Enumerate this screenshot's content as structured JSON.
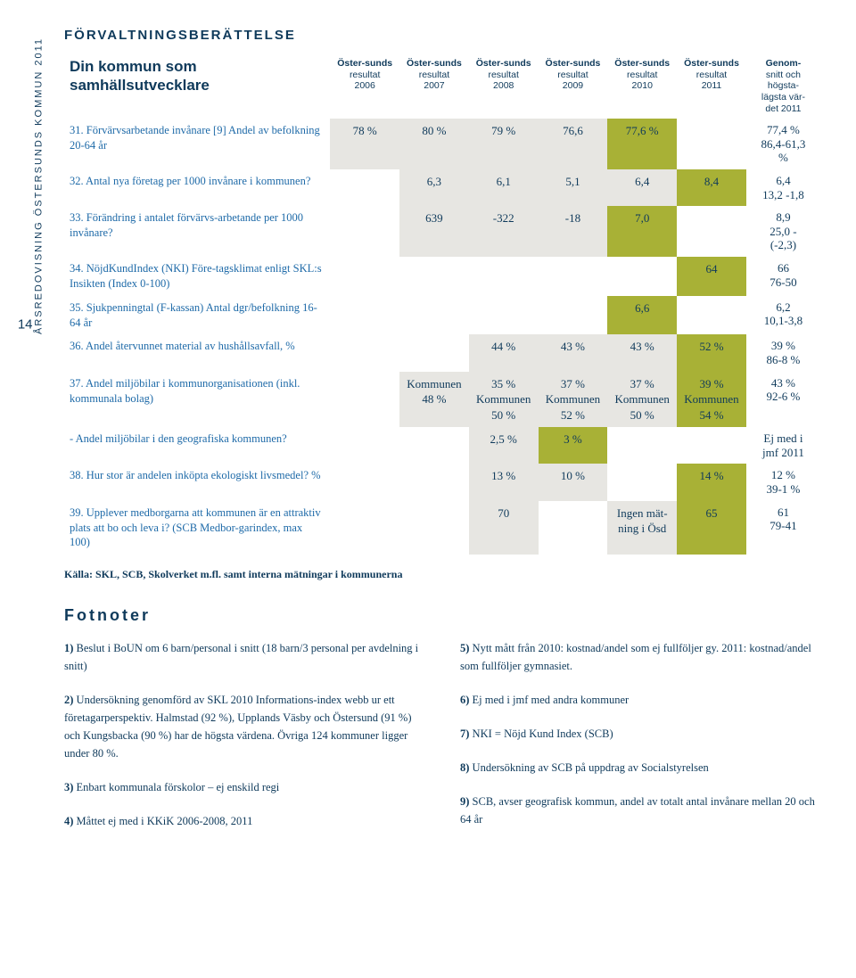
{
  "header_smallcaps": "FÖRVALTNINGSBERÄTTELSE",
  "spine_text": "ÅRSREDOVISNING ÖSTERSUNDS KOMMUN 2011",
  "page_number": "14",
  "table": {
    "title_line1": "Din kommun som",
    "title_line2": "samhällsutvecklare",
    "col_top": "Öster-sunds",
    "col_mid": "resultat",
    "years": [
      "2006",
      "2007",
      "2008",
      "2009",
      "2010",
      "2011"
    ],
    "genom_l1": "Genom-",
    "genom_l2": "snitt och",
    "genom_l3": "högsta-",
    "genom_l4": "lägsta vär-",
    "genom_l5": "det 2011",
    "rows": [
      {
        "label": "31. Förvärvsarbetande invånare [9] Andel av befolkning 20-64 år",
        "cells": [
          "78 %",
          "80 %",
          "79 %",
          "76,6",
          "77,6 %",
          ""
        ],
        "fill": [
          "grey",
          "grey",
          "grey",
          "grey",
          "olv",
          ""
        ],
        "g": [
          "77,4 %",
          "86,4-61,3",
          "%"
        ]
      },
      {
        "label": "32. Antal nya företag per 1000 invånare i kommunen?",
        "cells": [
          "",
          "6,3",
          "6,1",
          "5,1",
          "6,4",
          "8,4"
        ],
        "fill": [
          "",
          "grey",
          "grey",
          "grey",
          "grey",
          "olv"
        ],
        "g": [
          "6,4",
          "13,2 -1,8"
        ]
      },
      {
        "label": "33. Förändring i antalet förvärvs-arbetande per 1000 invånare?",
        "cells": [
          "",
          "639",
          "-322",
          "-18",
          "7,0",
          ""
        ],
        "fill": [
          "",
          "grey",
          "grey",
          "grey",
          "olv",
          ""
        ],
        "g": [
          "8,9",
          "25,0 -",
          "(-2,3)"
        ]
      },
      {
        "label": "34. NöjdKundIndex (NKI) Före-tagsklimat enligt SKL:s Insikten (Index 0-100)",
        "cells": [
          "",
          "",
          "",
          "",
          "",
          "64"
        ],
        "fill": [
          "",
          "",
          "",
          "",
          "",
          "olv"
        ],
        "g": [
          "66",
          "76-50"
        ]
      },
      {
        "label": "35. Sjukpenningtal (F-kassan) Antal dgr/befolkning 16-64 år",
        "cells": [
          "",
          "",
          "",
          "",
          "6,6",
          ""
        ],
        "fill": [
          "",
          "",
          "",
          "",
          "olv",
          ""
        ],
        "g": [
          "6,2",
          "10,1-3,8"
        ]
      },
      {
        "label": "36. Andel återvunnet material av hushållsavfall, %",
        "cells": [
          "",
          "",
          "44 %",
          "43 %",
          "43 %",
          "52 %"
        ],
        "fill": [
          "",
          "",
          "grey",
          "grey",
          "grey",
          "olv"
        ],
        "g": [
          "39 %",
          "86-8 %"
        ]
      },
      {
        "label": "37. Andel miljöbilar  i kommunorganisationen (inkl. kommunala bolag)",
        "cells": [
          "",
          "Kommunen 48 %",
          "35 %\nKommunen 50 %",
          "37 % Kommunen 52 %",
          "37 % Kommunen 50 %",
          "39 % Kommunen 54 %"
        ],
        "fill": [
          "",
          "grey",
          "grey",
          "grey",
          "grey",
          "olv"
        ],
        "g": [
          "43 %",
          "92-6 %"
        ]
      },
      {
        "label": "- Andel miljöbilar i den geografiska kommunen?",
        "cells": [
          "",
          "",
          "2,5 %",
          "3 %",
          "",
          ""
        ],
        "fill": [
          "",
          "",
          "grey",
          "olv",
          "",
          ""
        ],
        "g": [
          "Ej med i",
          "jmf 2011"
        ]
      },
      {
        "label": "38. Hur stor är andelen inköpta ekologiskt livsmedel? %",
        "cells": [
          "",
          "",
          "13 %",
          "10 %",
          "",
          "14 %"
        ],
        "fill": [
          "",
          "",
          "grey",
          "grey",
          "",
          "olv"
        ],
        "g": [
          "12 %",
          "39-1 %"
        ]
      },
      {
        "label": "39. Upplever medborgarna att kommunen är en attraktiv plats att bo och leva i? (SCB Medbor-garindex, max 100)",
        "cells": [
          "",
          "",
          "70",
          "",
          "Ingen mät-ning i Ösd",
          "65"
        ],
        "fill": [
          "",
          "",
          "grey",
          "",
          "grey",
          "olv"
        ],
        "g": [
          "61",
          "79-41"
        ]
      }
    ]
  },
  "source": "Källa: SKL, SCB, Skolverket m.fl. samt interna mätningar i kommunerna",
  "fotnoter_heading": "Fotnoter",
  "footnotes_left": [
    "1) Beslut i BoUN om 6 barn/personal i snitt (18 barn/3 personal per avdelning i snitt)",
    "2) Undersökning genomförd av SKL 2010 Informations-index webb ur ett företagarperspektiv. Halmstad (92 %), Upplands Väsby och Östersund (91 %) och Kungsbacka (90 %)  har de högsta värdena. Övriga 124 kommuner ligger under 80 %.",
    "3) Enbart kommunala förskolor – ej enskild regi",
    "4) Måttet ej med i KKiK 2006-2008, 2011"
  ],
  "footnotes_right": [
    "5) Nytt mått från 2010: kostnad/andel som ej fullföljer gy. 2011: kostnad/andel som fullföljer gymnasiet.",
    "6) Ej med i jmf med andra kommuner",
    "7) NKI = Nöjd Kund Index (SCB)",
    "8) Undersökning av SCB på uppdrag av Socialstyrelsen",
    "9) SCB, avser geografisk kommun, andel av totalt antal invånare mellan 20 och 64 år"
  ]
}
